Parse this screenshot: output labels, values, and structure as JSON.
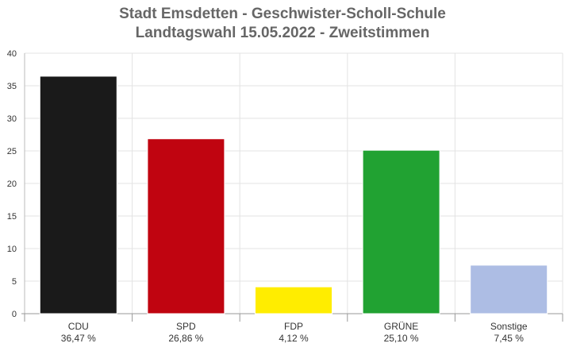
{
  "chart_data": {
    "type": "bar",
    "title": "Stadt Emsdetten - Geschwister-Scholl-Schule",
    "subtitle": "Landtagswahl 15.05.2022  - Zweitstimmen",
    "categories": [
      "CDU",
      "SPD",
      "FDP",
      "GRÜNE",
      "Sonstige"
    ],
    "value_labels": [
      "36,47 %",
      "26,86 %",
      "4,12 %",
      "25,10 %",
      "7,45 %"
    ],
    "values": [
      36.47,
      26.86,
      4.12,
      25.1,
      7.45
    ],
    "colors": [
      "#1a1a1a",
      "#c00410",
      "#ffed00",
      "#21a232",
      "#adbde4"
    ],
    "ylim": [
      0,
      40
    ],
    "yticks": [
      0,
      5,
      10,
      15,
      20,
      25,
      30,
      35,
      40
    ],
    "grid": true,
    "legend": "none"
  }
}
